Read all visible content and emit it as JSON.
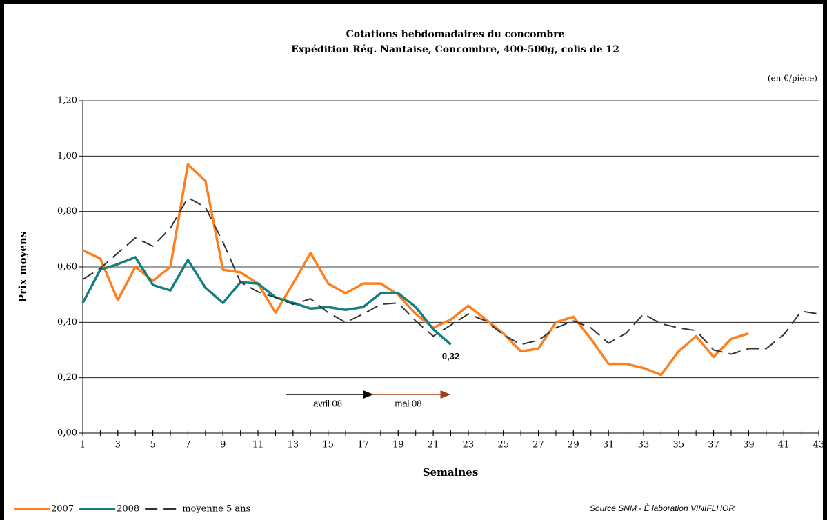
{
  "chart_data": {
    "type": "line",
    "title": "Cotations hebdomadaires du concombre",
    "subtitle": "Expédition Rég. Nantaise, Concombre, 400-500g, colis de 12",
    "unit_note": "(en €/pièce)",
    "y_label": "Prix moyens",
    "x_label": "Semaines",
    "source": "Source SNM - È laboration VINIFLHOR",
    "grid": true,
    "xlim": [
      1,
      43
    ],
    "xticks": [
      1,
      3,
      5,
      7,
      9,
      11,
      13,
      15,
      17,
      19,
      21,
      23,
      25,
      27,
      29,
      31,
      33,
      35,
      37,
      39,
      41,
      43
    ],
    "ylim": [
      0,
      1.2
    ],
    "yticks": [
      {
        "value": 0,
        "label": "0,00"
      },
      {
        "value": 0.2,
        "label": "0,20"
      },
      {
        "value": 0.4,
        "label": "0,40"
      },
      {
        "value": 0.6,
        "label": "0,60"
      },
      {
        "value": 0.8,
        "label": "0,80"
      },
      {
        "value": 1.0,
        "label": "1,00"
      },
      {
        "value": 1.2,
        "label": "1,20"
      }
    ],
    "annotations": [
      "avril 08",
      "mai 08"
    ],
    "series": [
      {
        "name": "2007",
        "color": "#ff7f1e",
        "style": "solid",
        "x": [
          1,
          2,
          3,
          4,
          5,
          6,
          7,
          8,
          9,
          10,
          11,
          12,
          13,
          14,
          15,
          16,
          17,
          18,
          19,
          20,
          21,
          22,
          23,
          24,
          25,
          26,
          27,
          28,
          29,
          30,
          31,
          32,
          33,
          34,
          35,
          36,
          37,
          38,
          39
        ],
        "values": [
          0.66,
          0.63,
          0.48,
          0.6,
          0.55,
          0.6,
          0.97,
          0.91,
          0.59,
          0.58,
          0.54,
          0.435,
          0.54,
          0.65,
          0.54,
          0.505,
          0.54,
          0.54,
          0.5,
          0.43,
          0.38,
          0.41,
          0.46,
          0.41,
          0.36,
          0.295,
          0.305,
          0.4,
          0.42,
          0.34,
          0.25,
          0.25,
          0.235,
          0.21,
          0.295,
          0.35,
          0.275,
          0.34,
          0.36
        ]
      },
      {
        "name": "2008",
        "color": "#138080",
        "style": "solid",
        "x": [
          1,
          2,
          3,
          4,
          5,
          6,
          7,
          8,
          9,
          10,
          11,
          12,
          13,
          14,
          15,
          16,
          17,
          18,
          19,
          20,
          21,
          22
        ],
        "values": [
          0.47,
          0.59,
          0.61,
          0.635,
          0.535,
          0.515,
          0.625,
          0.525,
          0.47,
          0.545,
          0.54,
          0.49,
          0.47,
          0.45,
          0.455,
          0.445,
          0.455,
          0.505,
          0.505,
          0.455,
          0.375,
          0.32
        ],
        "value_labels": [
          null,
          null,
          null,
          null,
          null,
          null,
          null,
          null,
          null,
          null,
          null,
          null,
          null,
          null,
          null,
          null,
          null,
          null,
          null,
          null,
          null,
          "0,32"
        ]
      },
      {
        "name": "moyenne 5 ans",
        "color": "#333333",
        "style": "dashed",
        "x": [
          1,
          2,
          3,
          4,
          5,
          6,
          7,
          8,
          9,
          10,
          11,
          12,
          13,
          14,
          15,
          16,
          17,
          18,
          19,
          20,
          21,
          22,
          23,
          24,
          25,
          26,
          27,
          28,
          29,
          30,
          31,
          32,
          33,
          34,
          35,
          36,
          37,
          38,
          39,
          40,
          41,
          42,
          43
        ],
        "values": [
          0.555,
          0.595,
          0.65,
          0.705,
          0.675,
          0.74,
          0.85,
          0.815,
          0.69,
          0.545,
          0.51,
          0.49,
          0.465,
          0.485,
          0.435,
          0.4,
          0.43,
          0.465,
          0.47,
          0.405,
          0.35,
          0.39,
          0.43,
          0.405,
          0.355,
          0.32,
          0.335,
          0.38,
          0.405,
          0.38,
          0.325,
          0.36,
          0.43,
          0.395,
          0.38,
          0.37,
          0.3,
          0.285,
          0.305,
          0.305,
          0.355,
          0.44,
          0.43
        ]
      }
    ]
  }
}
